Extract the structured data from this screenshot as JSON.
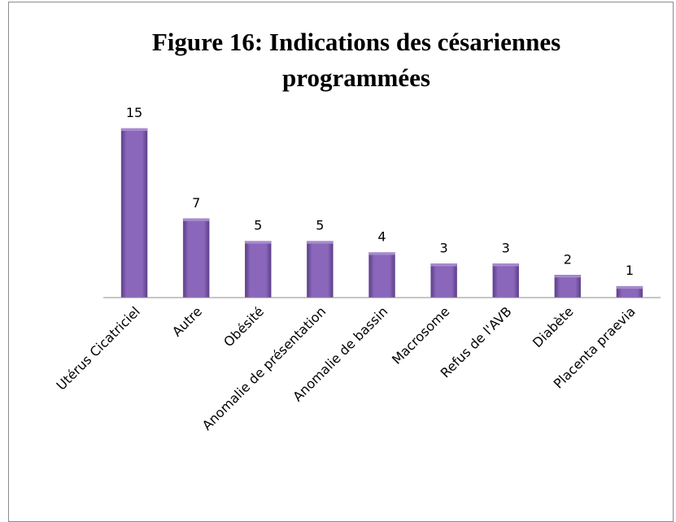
{
  "chart_data": {
    "type": "bar",
    "title": "Figure 16: Indications des césariennes programmées",
    "categories": [
      "Utérus Cicatriciel",
      "Autre",
      "Obésité",
      "Anomalie de présentation",
      "Anomalie de bassin",
      "Macrosome",
      "Refus de l'AVB",
      "Diabète",
      "Placenta praevia"
    ],
    "values": [
      15,
      7,
      5,
      5,
      4,
      3,
      3,
      2,
      1
    ],
    "color": "#7b59a8"
  }
}
